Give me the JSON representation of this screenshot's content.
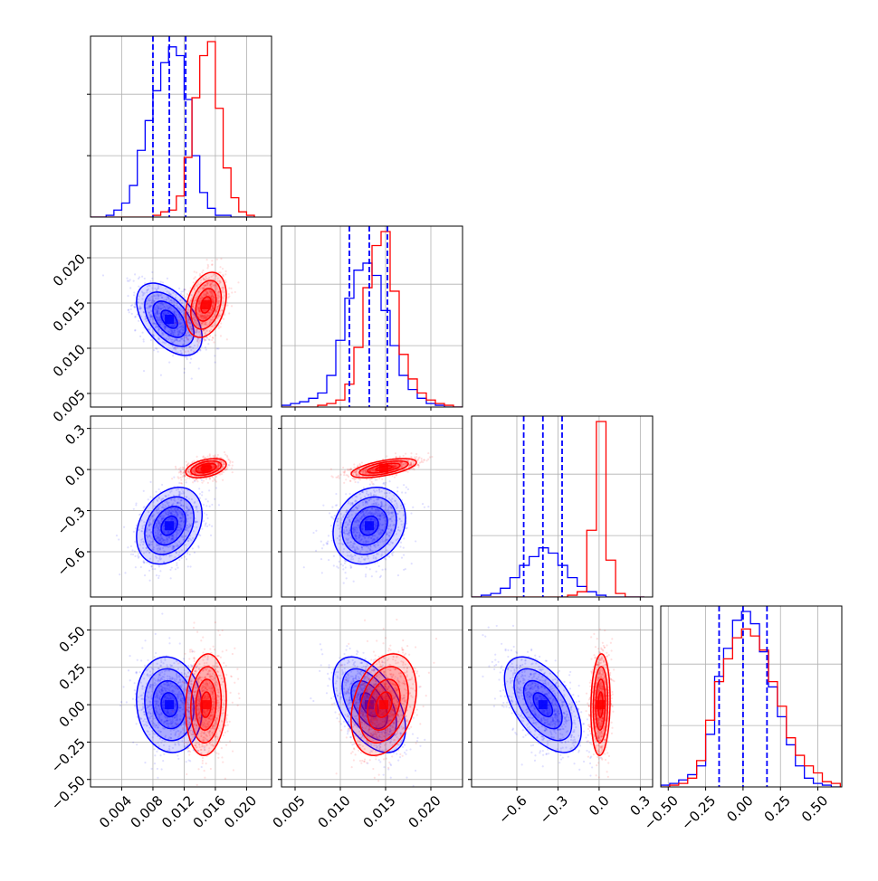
{
  "chart_data": {
    "type": "corner",
    "grid": true,
    "colors": {
      "series_a": "#0000ff",
      "series_b": "#ff0000"
    },
    "params": [
      {
        "range": [
          0.0,
          0.0232
        ],
        "ticks": [
          0.004,
          0.008,
          0.012,
          0.016,
          0.02
        ],
        "tick_labels": [
          "0.004",
          "0.008",
          "0.012",
          "0.016",
          "0.020"
        ]
      },
      {
        "range": [
          0.0035,
          0.0235
        ],
        "ticks": [
          0.005,
          0.01,
          0.015,
          0.02
        ],
        "tick_labels": [
          "0.005",
          "0.010",
          "0.015",
          "0.020"
        ]
      },
      {
        "range": [
          -0.93,
          0.39
        ],
        "ticks": [
          -0.6,
          -0.3,
          0.0,
          0.3
        ],
        "tick_labels": [
          "−0.6",
          "−0.3",
          "0.0",
          "0.3"
        ]
      },
      {
        "range": [
          -0.55,
          0.66
        ],
        "ticks": [
          -0.5,
          -0.25,
          0.0,
          0.25,
          0.5
        ],
        "tick_labels": [
          "−0.50",
          "−0.25",
          "0.00",
          "0.25",
          "0.50"
        ]
      }
    ],
    "series": [
      {
        "color": "#0000ff",
        "means": [
          0.0101,
          0.0132,
          -0.41,
          0.0
        ],
        "sigmas": [
          0.0021,
          0.002,
          0.14,
          0.16
        ],
        "corr": [
          [
            0,
            1,
            -0.5
          ],
          [
            0,
            2,
            0.3
          ],
          [
            0,
            3,
            -0.1
          ],
          [
            1,
            2,
            0.2
          ],
          [
            1,
            3,
            -0.5
          ],
          [
            2,
            3,
            -0.55
          ]
        ],
        "quantiles": [
          [
            0.008,
            0.0101,
            0.0122
          ],
          [
            0.011,
            0.0132,
            0.0152
          ],
          [
            -0.55,
            -0.41,
            -0.27
          ],
          [
            -0.16,
            0.0,
            0.16
          ]
        ]
      },
      {
        "color": "#ff0000",
        "means": [
          0.0148,
          0.0148,
          0.01,
          0.0
        ],
        "sigmas": [
          0.0013,
          0.0018,
          0.035,
          0.17
        ],
        "corr": [
          [
            0,
            1,
            0.3
          ],
          [
            0,
            2,
            0.4
          ],
          [
            0,
            3,
            0.1
          ],
          [
            1,
            2,
            0.6
          ],
          [
            1,
            3,
            0.3
          ],
          [
            2,
            3,
            0.1
          ]
        ],
        "quantiles": null
      }
    ],
    "hist_bins": [
      {
        "edges": [
          0.0,
          0.001,
          0.002,
          0.003,
          0.004,
          0.005,
          0.006,
          0.007,
          0.008,
          0.009,
          0.01,
          0.011,
          0.012,
          0.013,
          0.014,
          0.015,
          0.016,
          0.017,
          0.018,
          0.019,
          0.02,
          0.021
        ],
        "series_a": [
          0,
          0,
          0.01,
          0.04,
          0.08,
          0.18,
          0.38,
          0.55,
          0.72,
          0.88,
          0.97,
          0.92,
          0.67,
          0.35,
          0.14,
          0.05,
          0.01,
          0.01,
          0,
          0,
          0
        ],
        "series_b": [
          0,
          0,
          0,
          0,
          0,
          0,
          0,
          0,
          0.01,
          0.03,
          0.04,
          0.12,
          0.34,
          0.68,
          0.92,
          1.0,
          0.62,
          0.28,
          0.11,
          0.03,
          0.01
        ]
      },
      {
        "edges": [
          0.0035,
          0.0045,
          0.0055,
          0.0065,
          0.0075,
          0.0085,
          0.0095,
          0.0105,
          0.0115,
          0.0125,
          0.0135,
          0.0145,
          0.0155,
          0.0165,
          0.0175,
          0.0185,
          0.0195,
          0.0205,
          0.0215,
          0.0225,
          0.0235
        ],
        "series_a": [
          0.01,
          0.02,
          0.03,
          0.05,
          0.08,
          0.18,
          0.38,
          0.62,
          0.78,
          0.82,
          0.75,
          0.55,
          0.35,
          0.18,
          0.1,
          0.05,
          0.02,
          0.01,
          0,
          0
        ],
        "series_b": [
          0,
          0,
          0,
          0,
          0.01,
          0.02,
          0.04,
          0.13,
          0.34,
          0.68,
          0.92,
          1.0,
          0.66,
          0.3,
          0.16,
          0.08,
          0.04,
          0.02,
          0.01,
          0
        ]
      },
      {
        "edges": [
          -0.93,
          -0.86,
          -0.79,
          -0.72,
          -0.65,
          -0.58,
          -0.51,
          -0.44,
          -0.37,
          -0.3,
          -0.23,
          -0.16,
          -0.09,
          -0.02,
          0.05,
          0.12,
          0.19,
          0.26,
          0.33
        ],
        "series_a": [
          0,
          0.01,
          0.02,
          0.05,
          0.11,
          0.18,
          0.23,
          0.28,
          0.25,
          0.18,
          0.11,
          0.06,
          0.03,
          0.01,
          0,
          0,
          0,
          0
        ],
        "series_b": [
          0,
          0,
          0,
          0,
          0,
          0,
          0,
          0,
          0,
          0,
          0.01,
          0.03,
          0.38,
          1.0,
          0.21,
          0.02,
          0,
          0
        ]
      },
      {
        "edges": [
          -0.55,
          -0.49,
          -0.43,
          -0.37,
          -0.31,
          -0.25,
          -0.19,
          -0.13,
          -0.07,
          -0.01,
          0.05,
          0.11,
          0.17,
          0.23,
          0.29,
          0.35,
          0.41,
          0.47,
          0.53,
          0.59,
          0.65
        ],
        "series_a": [
          0.01,
          0.02,
          0.04,
          0.07,
          0.12,
          0.3,
          0.63,
          0.79,
          0.95,
          1.0,
          0.93,
          0.77,
          0.57,
          0.4,
          0.24,
          0.12,
          0.05,
          0.02,
          0.01,
          0
        ],
        "series_b": [
          0,
          0.01,
          0.02,
          0.05,
          0.15,
          0.38,
          0.6,
          0.73,
          0.85,
          0.9,
          0.86,
          0.78,
          0.6,
          0.46,
          0.28,
          0.18,
          0.12,
          0.08,
          0.03,
          0.02
        ]
      }
    ]
  }
}
